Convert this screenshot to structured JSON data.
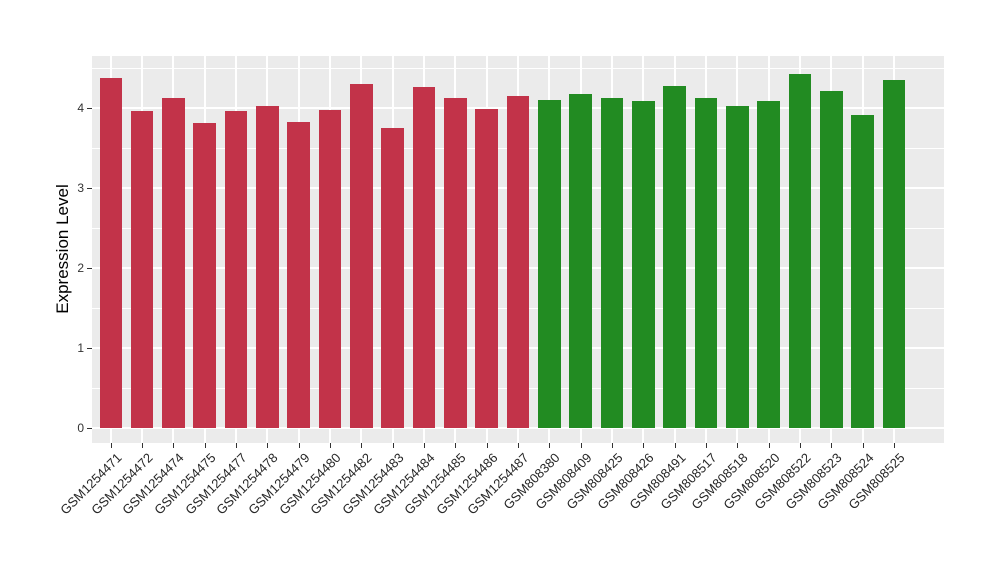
{
  "figure": {
    "background": "#FFFFFF",
    "panel_background": "#EBEBEB",
    "gridline_color": "#FFFFFF",
    "tick_color": "#333333",
    "axis_text_color": "#333333",
    "axis_label_color": "#000000"
  },
  "chart_data": {
    "type": "bar",
    "title": "",
    "xlabel": "",
    "ylabel": "Expression Level",
    "ylim": [
      0,
      4.65
    ],
    "yticks": [
      "0",
      "1",
      "2",
      "3",
      "4"
    ],
    "grid": true,
    "legend": "none",
    "palette": {
      "red": "#C23349",
      "green": "#228B22"
    },
    "bars": [
      {
        "label": "GSM1254471",
        "value": 4.37,
        "group": "red"
      },
      {
        "label": "GSM1254472",
        "value": 3.96,
        "group": "red"
      },
      {
        "label": "GSM1254474",
        "value": 4.12,
        "group": "red"
      },
      {
        "label": "GSM1254475",
        "value": 3.81,
        "group": "red"
      },
      {
        "label": "GSM1254477",
        "value": 3.96,
        "group": "red"
      },
      {
        "label": "GSM1254478",
        "value": 4.03,
        "group": "red"
      },
      {
        "label": "GSM1254479",
        "value": 3.82,
        "group": "red"
      },
      {
        "label": "GSM1254480",
        "value": 3.98,
        "group": "red"
      },
      {
        "label": "GSM1254482",
        "value": 4.3,
        "group": "red"
      },
      {
        "label": "GSM1254483",
        "value": 3.75,
        "group": "red"
      },
      {
        "label": "GSM1254484",
        "value": 4.26,
        "group": "red"
      },
      {
        "label": "GSM1254485",
        "value": 4.12,
        "group": "red"
      },
      {
        "label": "GSM1254486",
        "value": 3.99,
        "group": "red"
      },
      {
        "label": "GSM1254487",
        "value": 4.15,
        "group": "red"
      },
      {
        "label": "GSM808380",
        "value": 4.1,
        "group": "green"
      },
      {
        "label": "GSM808409",
        "value": 4.17,
        "group": "green"
      },
      {
        "label": "GSM808425",
        "value": 4.12,
        "group": "green"
      },
      {
        "label": "GSM808426",
        "value": 4.09,
        "group": "green"
      },
      {
        "label": "GSM808491",
        "value": 4.28,
        "group": "green"
      },
      {
        "label": "GSM808517",
        "value": 4.13,
        "group": "green"
      },
      {
        "label": "GSM808518",
        "value": 4.02,
        "group": "green"
      },
      {
        "label": "GSM808520",
        "value": 4.09,
        "group": "green"
      },
      {
        "label": "GSM808522",
        "value": 4.43,
        "group": "green"
      },
      {
        "label": "GSM808523",
        "value": 4.21,
        "group": "green"
      },
      {
        "label": "GSM808524",
        "value": 3.91,
        "group": "green"
      },
      {
        "label": "GSM808525",
        "value": 4.35,
        "group": "green"
      }
    ]
  }
}
